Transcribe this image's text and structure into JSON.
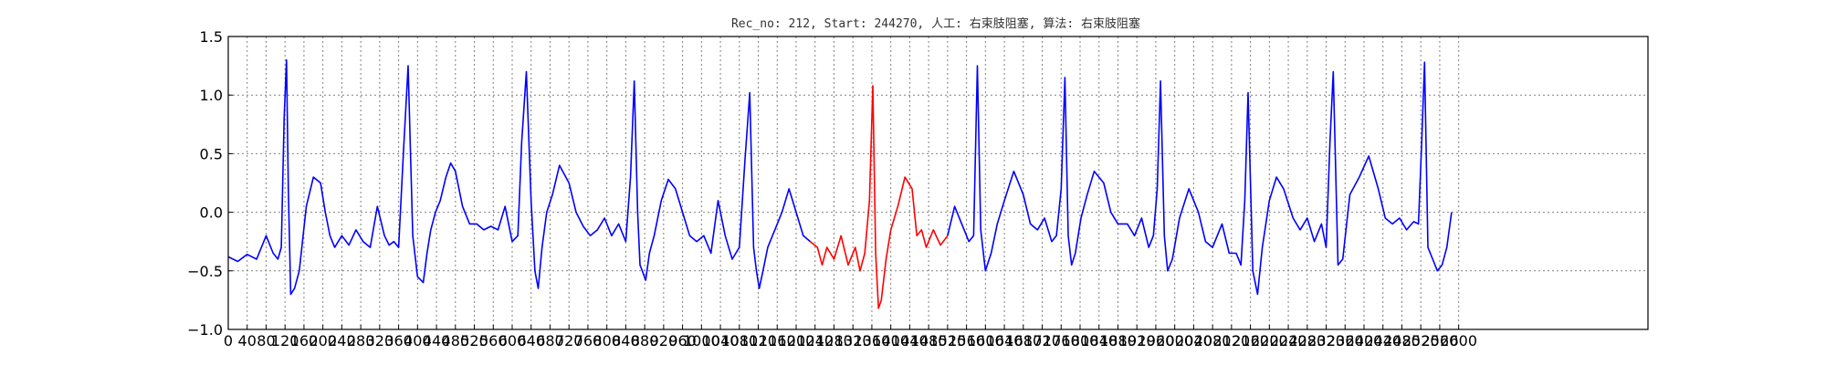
{
  "chart_data": {
    "type": "line",
    "title": "Rec_no: 212, Start: 244270, 人工: 右束肢阻塞, 算法: 右束肢阻塞",
    "xlabel": "",
    "ylabel": "",
    "xlim": [
      0,
      3000
    ],
    "ylim": [
      -1.0,
      1.5
    ],
    "grid": true,
    "y_ticks": [
      -1.0,
      -0.5,
      0.0,
      0.5,
      1.0,
      1.5
    ],
    "y_tick_labels": [
      "−1.0",
      "−0.5",
      "0.0",
      "0.5",
      "1.0",
      "1.5"
    ],
    "x_ticks": [
      0,
      40,
      80,
      120,
      160,
      200,
      240,
      280,
      320,
      360,
      400,
      440,
      480,
      520,
      560,
      600,
      640,
      680,
      720,
      760,
      800,
      840,
      880,
      920,
      960,
      1000,
      1040,
      1080,
      1120,
      1160,
      1200,
      1240,
      1280,
      1320,
      1360,
      1400,
      1440,
      1480,
      1520,
      1560,
      1600,
      1640,
      1680,
      1720,
      1760,
      1800,
      1840,
      1880,
      1920,
      1960,
      2000,
      2040,
      2080,
      2120,
      2160,
      2200,
      2240,
      2280,
      2320,
      2360,
      2400,
      2440,
      2480,
      2520,
      2560,
      2600
    ],
    "x_tick_labels": [
      "0",
      "40",
      "80",
      "120",
      "160",
      "200",
      "240",
      "280",
      "320",
      "360",
      "400",
      "440",
      "480",
      "520",
      "560",
      "600",
      "640",
      "680",
      "720",
      "760",
      "800",
      "840",
      "880",
      "920",
      "960",
      "1000",
      "1040",
      "1080",
      "1120",
      "1160",
      "1200",
      "1240",
      "1280",
      "1320",
      "1360",
      "1400",
      "1440",
      "1480",
      "1520",
      "1560",
      "1600",
      "1640",
      "1680",
      "1720",
      "1760",
      "1800",
      "1840",
      "1880",
      "1920",
      "1960",
      "2000",
      "2040",
      "2080",
      "2120",
      "2160",
      "2200",
      "2240",
      "2280",
      "2320",
      "2360",
      "2400",
      "2440",
      "2480",
      "2520",
      "2560",
      "2600"
    ],
    "series": [
      {
        "color": "#0000ff",
        "x": [
          0,
          20,
          40,
          60,
          80,
          95,
          105,
          112,
          118,
          123,
          127,
          132,
          140,
          150,
          165,
          180,
          195,
          205,
          215,
          225,
          240,
          255,
          270,
          285,
          300,
          315,
          330,
          340,
          350,
          360,
          370,
          380,
          390,
          400,
          412,
          420,
          428,
          438,
          448,
          460,
          470,
          480,
          495,
          510,
          525,
          540,
          555,
          570,
          585,
          600,
          612,
          620,
          630,
          640,
          648,
          655,
          663,
          673,
          685,
          700,
          720,
          735,
          750,
          765,
          780,
          795,
          810,
          825,
          840,
          850,
          858,
          865,
          870,
          875,
          882,
          890,
          900,
          915,
          930,
          945,
          960,
          975,
          990,
          1005,
          1020,
          1035,
          1050,
          1065,
          1080,
          1092,
          1102,
          1110,
          1116,
          1122,
          1130,
          1140,
          1155,
          1170,
          1185,
          1200,
          1215,
          1230
        ],
        "y": [
          -0.38,
          -0.42,
          -0.36,
          -0.4,
          -0.2,
          -0.35,
          -0.4,
          -0.3,
          0.8,
          1.3,
          0.2,
          -0.7,
          -0.65,
          -0.5,
          0.05,
          0.3,
          0.25,
          0.0,
          -0.2,
          -0.3,
          -0.2,
          -0.28,
          -0.15,
          -0.25,
          -0.3,
          0.05,
          -0.2,
          -0.28,
          -0.25,
          -0.3,
          0.5,
          1.25,
          -0.2,
          -0.55,
          -0.6,
          -0.35,
          -0.15,
          0.0,
          0.1,
          0.3,
          0.42,
          0.35,
          0.05,
          -0.1,
          -0.1,
          -0.15,
          -0.12,
          -0.15,
          0.05,
          -0.25,
          -0.2,
          0.6,
          1.2,
          0.1,
          -0.5,
          -0.65,
          -0.3,
          0.0,
          0.15,
          0.4,
          0.25,
          0.0,
          -0.12,
          -0.2,
          -0.15,
          -0.05,
          -0.2,
          -0.1,
          -0.25,
          0.3,
          1.12,
          0.0,
          -0.45,
          -0.5,
          -0.58,
          -0.35,
          -0.2,
          0.1,
          0.28,
          0.2,
          0.0,
          -0.2,
          -0.25,
          -0.2,
          -0.35,
          0.1,
          -0.2,
          -0.4,
          -0.3,
          0.45,
          1.02,
          -0.3,
          -0.5,
          -0.65,
          -0.5,
          -0.3,
          -0.15,
          0.0,
          0.2,
          0.0,
          -0.2,
          -0.25
        ]
      },
      {
        "color": "#ff0000",
        "x": [
          1230,
          1245,
          1255,
          1265,
          1280,
          1295,
          1310,
          1325,
          1335,
          1345,
          1355,
          1362,
          1368,
          1374,
          1380,
          1390,
          1400,
          1415,
          1430,
          1445,
          1455,
          1465,
          1475,
          1490,
          1505,
          1520
        ],
        "y": [
          -0.25,
          -0.3,
          -0.45,
          -0.3,
          -0.4,
          -0.2,
          -0.45,
          -0.3,
          -0.5,
          -0.35,
          0.1,
          1.08,
          -0.35,
          -0.82,
          -0.75,
          -0.4,
          -0.15,
          0.05,
          0.3,
          0.2,
          -0.2,
          -0.15,
          -0.3,
          -0.15,
          -0.28,
          -0.2
        ]
      },
      {
        "color": "#0000ff",
        "x": [
          1520,
          1535,
          1550,
          1565,
          1575,
          1583,
          1590,
          1600,
          1612,
          1625,
          1640,
          1660,
          1680,
          1695,
          1710,
          1725,
          1740,
          1750,
          1760,
          1768,
          1775,
          1782,
          1790,
          1802,
          1815,
          1830,
          1850,
          1865,
          1880,
          1900,
          1915,
          1930,
          1945,
          1955,
          1963,
          1970,
          1978,
          1985,
          1995,
          2010,
          2030,
          2050,
          2065,
          2080,
          2100,
          2115,
          2130,
          2140,
          2148,
          2155,
          2165,
          2175,
          2185,
          2200,
          2215,
          2230,
          2250,
          2265,
          2280,
          2295,
          2310,
          2320,
          2328,
          2335,
          2345,
          2355,
          2370,
          2390,
          2410,
          2430,
          2445,
          2460,
          2475,
          2490,
          2505,
          2515,
          2522,
          2528,
          2535,
          2545,
          2555,
          2565,
          2575,
          2585
        ],
        "y": [
          -0.2,
          0.05,
          -0.1,
          -0.25,
          -0.2,
          1.25,
          -0.15,
          -0.5,
          -0.35,
          -0.1,
          0.1,
          0.35,
          0.15,
          -0.1,
          -0.15,
          -0.05,
          -0.25,
          -0.2,
          0.2,
          1.15,
          -0.2,
          -0.45,
          -0.35,
          -0.05,
          0.15,
          0.35,
          0.25,
          0.0,
          -0.1,
          -0.1,
          -0.2,
          -0.05,
          -0.3,
          -0.2,
          0.2,
          1.12,
          -0.2,
          -0.5,
          -0.4,
          -0.05,
          0.2,
          0.0,
          -0.25,
          -0.3,
          -0.1,
          -0.35,
          -0.35,
          -0.45,
          0.1,
          1.02,
          -0.5,
          -0.7,
          -0.3,
          0.1,
          0.3,
          0.2,
          -0.05,
          -0.15,
          -0.05,
          -0.25,
          -0.1,
          -0.3,
          0.6,
          1.2,
          -0.45,
          -0.4,
          0.15,
          0.3,
          0.48,
          0.2,
          -0.05,
          -0.1,
          -0.05,
          -0.15,
          -0.08,
          -0.1,
          0.6,
          1.28,
          -0.3,
          -0.4,
          -0.5,
          -0.45,
          -0.3,
          0.0
        ]
      }
    ]
  }
}
